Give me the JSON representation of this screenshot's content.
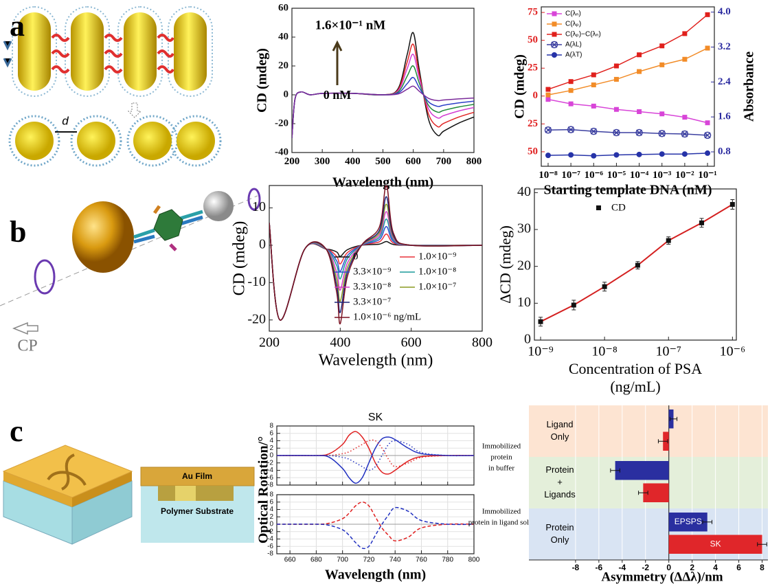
{
  "figure": {
    "panel_labels": [
      "a",
      "b",
      "c"
    ],
    "distance_label": "d",
    "beam_label": "CP",
    "layer_labels": [
      "Au Film",
      "Polymer Substrate"
    ]
  },
  "chart_data": [
    {
      "type": "line",
      "xlabel": "Wavelength (nm)",
      "ylabel": "CD (mdeg)",
      "annotations": [
        "1.6×10⁻¹ nM",
        "0 nM"
      ],
      "xlim": [
        200,
        800
      ],
      "xticks": [
        200,
        300,
        400,
        500,
        600,
        700,
        800
      ],
      "ylim": [
        -40,
        60
      ],
      "yticks": [
        -40,
        -20,
        0,
        20,
        40,
        60
      ],
      "x": [
        200,
        210,
        230,
        260,
        300,
        400,
        500,
        550,
        580,
        600,
        620,
        650,
        680,
        700,
        750,
        800
      ],
      "series": [
        {
          "color": "#111111",
          "values": [
            -30,
            -3,
            2,
            0,
            1,
            1,
            0,
            4.3,
            28,
            43,
            17.2,
            -16.8,
            -28,
            -25.2,
            -19.6,
            -15.4
          ]
        },
        {
          "color": "#e02424",
          "values": [
            -30,
            -3,
            2,
            0,
            1,
            1,
            0,
            3.5,
            22.8,
            35,
            14,
            -13.2,
            -22,
            -19.8,
            -15.4,
            -12.1
          ]
        },
        {
          "color": "#d23cd2",
          "values": [
            -30,
            -3,
            2,
            0,
            1,
            1,
            0,
            2.8,
            18.2,
            28,
            11.2,
            -9.6,
            -16,
            -14.4,
            -11.2,
            -8.8
          ]
        },
        {
          "color": "#1f8a3a",
          "values": [
            -30,
            -3,
            2,
            0,
            1,
            1,
            0,
            2,
            13,
            20,
            8,
            -7.2,
            -12,
            -10.8,
            -8.4,
            -6.6
          ]
        },
        {
          "color": "#2c3fc8",
          "values": [
            -30,
            -3,
            2,
            0,
            1,
            1,
            0,
            1.2,
            7.8,
            12,
            4.8,
            -4.8,
            -8,
            -7.2,
            -5.6,
            -4.4
          ]
        },
        {
          "color": "#7a2a9a",
          "values": [
            -30,
            -3,
            2,
            0,
            1,
            1,
            0,
            0.6,
            3.9,
            6,
            2.4,
            -2.4,
            -4,
            -3.6,
            -2.8,
            -2.2
          ]
        }
      ]
    },
    {
      "type": "line",
      "xscale": "log",
      "xlabel": "Starting template DNA  (nM)",
      "ylabel": "CD (mdeg)",
      "y2label": "Absorbance",
      "legend": "upper left",
      "ycolor": "#e02020",
      "y2color": "#2b2ba0",
      "xlim": [
        5e-09,
        0.2
      ],
      "xticks": [
        {
          "value": 1e-08,
          "label": "10⁻⁸"
        },
        {
          "value": 1e-07,
          "label": "10⁻⁷"
        },
        {
          "value": 1e-06,
          "label": "10⁻⁶"
        },
        {
          "value": 1e-05,
          "label": "10⁻⁵"
        },
        {
          "value": 0.0001,
          "label": "10⁻⁴"
        },
        {
          "value": 0.001,
          "label": "10⁻³"
        },
        {
          "value": 0.01,
          "label": "10⁻²"
        },
        {
          "value": 0.1,
          "label": "10⁻¹"
        }
      ],
      "ylim": [
        -63,
        80
      ],
      "yticks": [
        75,
        50,
        25,
        0,
        {
          "value": -25,
          "label": "25"
        },
        {
          "value": -50,
          "label": "50"
        }
      ],
      "y2lim": [
        0.47,
        4.12
      ],
      "y2ticks": [
        {
          "value": 4,
          "label": "4.0"
        },
        3.2,
        2.4,
        1.6,
        0.8
      ],
      "x": [
        1e-08,
        1e-07,
        1e-06,
        1e-05,
        0.0001,
        0.001,
        0.01,
        0.1
      ],
      "series": [
        {
          "name": "C(λₙ)",
          "color": "#d845d8",
          "marker": "square",
          "values": [
            -3,
            -7,
            -9,
            -12,
            -14,
            -16,
            -19,
            -24
          ]
        },
        {
          "name": "C(λₚ)",
          "color": "#f28c28",
          "marker": "square",
          "values": [
            1,
            5,
            10,
            15,
            22,
            28,
            33,
            43
          ]
        },
        {
          "name": "C(λₚ)−C(λₙ)",
          "color": "#e0201c",
          "marker": "square",
          "values": [
            6,
            13,
            19,
            27,
            37,
            45,
            56,
            73
          ]
        },
        {
          "name": "A(λL)",
          "color": "#3b3fa0",
          "marker": "crossed",
          "axis": "y2",
          "values": [
            1.3,
            1.31,
            1.27,
            1.24,
            1.24,
            1.22,
            1.21,
            1.18
          ]
        },
        {
          "name": "A(λT)",
          "color": "#2633a8",
          "marker": "circle",
          "axis": "y2",
          "values": [
            0.72,
            0.73,
            0.71,
            0.73,
            0.74,
            0.75,
            0.75,
            0.77
          ]
        }
      ]
    },
    {
      "type": "line",
      "smooth": true,
      "xlabel": "Wavelength (nm)",
      "ylabel": "CD (mdeg)",
      "legend": "lower right",
      "xlim": [
        200,
        800
      ],
      "xticks": [
        200,
        400,
        600,
        800
      ],
      "ylim": [
        -23,
        16
      ],
      "yticks": [
        -20,
        -10,
        0,
        10
      ],
      "x": [
        200,
        230,
        300,
        360,
        390,
        400,
        420,
        460,
        510,
        530,
        550,
        600,
        800
      ],
      "series": [
        {
          "name": "0",
          "color": "#111111",
          "values": [
            6,
            -20,
            -1,
            -1,
            -1.8,
            -3,
            -1.2,
            0,
            0.3,
            1,
            0.2,
            0,
            0
          ]
        },
        {
          "name": "1.0×10⁻⁹",
          "color": "#e8303a",
          "values": [
            6,
            -20,
            -1,
            -1,
            -3,
            -5,
            -2,
            0,
            0.9,
            3,
            0.6,
            0,
            0
          ]
        },
        {
          "name": "3.3×10⁻⁹",
          "color": "#2f4fd0",
          "values": [
            6,
            -20,
            -1,
            -1,
            -4.2,
            -7,
            -2.8,
            0,
            1.5,
            5,
            1,
            0,
            0
          ]
        },
        {
          "name": "1.0×10⁻⁸",
          "color": "#1a9a9a",
          "values": [
            6,
            -20,
            -1,
            -1,
            -5.4,
            -9,
            -3.6,
            0,
            2.1,
            7,
            1.4,
            0,
            0
          ]
        },
        {
          "name": "3.3×10⁻⁸",
          "color": "#d43cc8",
          "values": [
            6,
            -20,
            -1,
            -1,
            -7.2,
            -12,
            -4.8,
            0,
            2.7,
            9,
            1.8,
            0,
            0
          ]
        },
        {
          "name": "1.0×10⁻⁷",
          "color": "#8a9a20",
          "values": [
            6,
            -20,
            -1,
            -1,
            -9,
            -15,
            -6,
            0,
            3.3,
            11,
            2.2,
            0,
            0
          ]
        },
        {
          "name": "3.3×10⁻⁷",
          "color": "#1c2478",
          "values": [
            6,
            -20,
            -1,
            -1,
            -10.8,
            -18,
            -7.2,
            0,
            3.9,
            13,
            2.6,
            0,
            0
          ]
        },
        {
          "name": "1.0×10⁻⁶ ng/mL",
          "color": "#7a1020",
          "values": [
            6,
            -20,
            -1,
            -1,
            -12.6,
            -21,
            -8.4,
            0,
            4.8,
            16,
            3.2,
            0,
            0
          ]
        }
      ]
    },
    {
      "type": "scatter",
      "xscale": "log",
      "xlabel": [
        "Concentration of PSA",
        "(ng/mL)"
      ],
      "ylabel": "ΔCD (mdeg)",
      "legend": "upper center",
      "line_color": "#d42020",
      "xlim": [
        8e-10,
        1.15e-06
      ],
      "xticks": [
        {
          "value": 1e-09,
          "label": "10⁻⁹"
        },
        {
          "value": 1e-08,
          "label": "10⁻⁸"
        },
        {
          "value": 1e-07,
          "label": "10⁻⁷"
        },
        {
          "value": 1e-06,
          "label": "10⁻⁶"
        }
      ],
      "ylim": [
        0,
        41
      ],
      "yticks": [
        0,
        10,
        20,
        30,
        40
      ],
      "x": [
        1e-09,
        3.3e-09,
        1e-08,
        3.3e-08,
        1e-07,
        3.3e-07,
        1e-06
      ],
      "series": [
        {
          "name": "CD",
          "color": "#111111",
          "values": [
            5,
            9.5,
            14.5,
            20.3,
            27,
            31.8,
            36.8
          ],
          "errors": [
            1.2,
            1.3,
            1.2,
            1,
            1,
            1.2,
            1.3
          ]
        }
      ]
    },
    {
      "type": "line",
      "title": "SK",
      "ylabel": "Optical Rotation/°",
      "annotation": [
        "Immobilized",
        "protein",
        "in buffer"
      ],
      "grid": true,
      "xticklabels": false,
      "xlim": [
        650,
        800
      ],
      "xticks": [
        660,
        680,
        700,
        720,
        740,
        760,
        780,
        800
      ],
      "ylim": [
        -8,
        8
      ],
      "yticks": [
        -8,
        -6,
        -4,
        -2,
        0,
        2,
        4,
        6,
        8
      ],
      "x": [
        650,
        680,
        690,
        700,
        705,
        710,
        715,
        720,
        725,
        730,
        735,
        740,
        750,
        760,
        780,
        800
      ],
      "series": [
        {
          "color": "#e02020",
          "values": [
            0,
            0,
            0.5,
            3,
            5.5,
            6.5,
            5,
            2,
            -2,
            -4.5,
            -5,
            -4,
            -1.5,
            -0.3,
            0,
            0
          ]
        },
        {
          "color": "#2030c0",
          "values": [
            0,
            0,
            -0.5,
            -3.5,
            -6,
            -7.5,
            -6,
            -2,
            2,
            4.5,
            5,
            4.3,
            2,
            0.5,
            0,
            0
          ]
        },
        {
          "color": "#e02020",
          "dash": "dotted",
          "values": [
            0,
            0,
            0,
            0.5,
            1,
            2,
            3,
            4,
            4,
            2,
            -1,
            -3,
            -2,
            -0.5,
            0,
            0
          ]
        },
        {
          "color": "#2030c0",
          "dash": "dotted",
          "values": [
            0,
            0,
            0,
            -0.5,
            -1,
            -2,
            -3,
            -4,
            -3,
            0,
            3,
            4,
            3,
            0.8,
            0,
            0
          ]
        }
      ]
    },
    {
      "type": "line",
      "xlabel": "Wavelength (nm)",
      "annotation": [
        "Immobilized",
        "protein in ligand soln."
      ],
      "grid": true,
      "xlim": [
        650,
        800
      ],
      "xticks": [
        660,
        680,
        700,
        720,
        740,
        760,
        780,
        800
      ],
      "ylim": [
        -8,
        8
      ],
      "yticks": [
        -8,
        -6,
        -4,
        -2,
        0,
        2,
        4,
        6,
        8
      ],
      "x": [
        650,
        680,
        690,
        700,
        705,
        710,
        715,
        720,
        725,
        730,
        735,
        740,
        750,
        760,
        780,
        800
      ],
      "series": [
        {
          "color": "#e02020",
          "dash": "dashed",
          "values": [
            0,
            0,
            0.3,
            1.5,
            3,
            5,
            6,
            5,
            2,
            -1,
            -3,
            -4.5,
            -3.5,
            -1,
            0,
            0
          ]
        },
        {
          "color": "#2030c0",
          "dash": "dashed",
          "values": [
            0,
            0,
            -0.3,
            -1.5,
            -3,
            -5,
            -6.5,
            -6,
            -3,
            0,
            2.5,
            4.5,
            3.5,
            1,
            0,
            0
          ]
        }
      ]
    },
    {
      "type": "barh",
      "xlabel": "Asymmetry (ΔΔλ)/nm",
      "grid": true,
      "band_colors": [
        "#fde4d2",
        "#e4efda",
        "#d9e4f3"
      ],
      "categories": [
        [
          "Ligand",
          "Only"
        ],
        [
          "Protein",
          "+",
          "Ligands"
        ],
        [
          "Protein",
          "Only"
        ]
      ],
      "xlim": [
        -12,
        8.5
      ],
      "xticks": [
        -8,
        -6,
        -4,
        -2,
        0,
        2,
        4,
        6,
        8
      ],
      "series": [
        {
          "name": "EPSPS",
          "color": "#2a2fa0",
          "values": [
            0.4,
            -4.6,
            3.3
          ],
          "errors": [
            0.3,
            0.4,
            0.4
          ]
        },
        {
          "name": "SK",
          "color": "#e0262a",
          "values": [
            -0.5,
            -2.2,
            8.0
          ],
          "errors": [
            0.4,
            0.4,
            0.4
          ]
        }
      ]
    }
  ]
}
